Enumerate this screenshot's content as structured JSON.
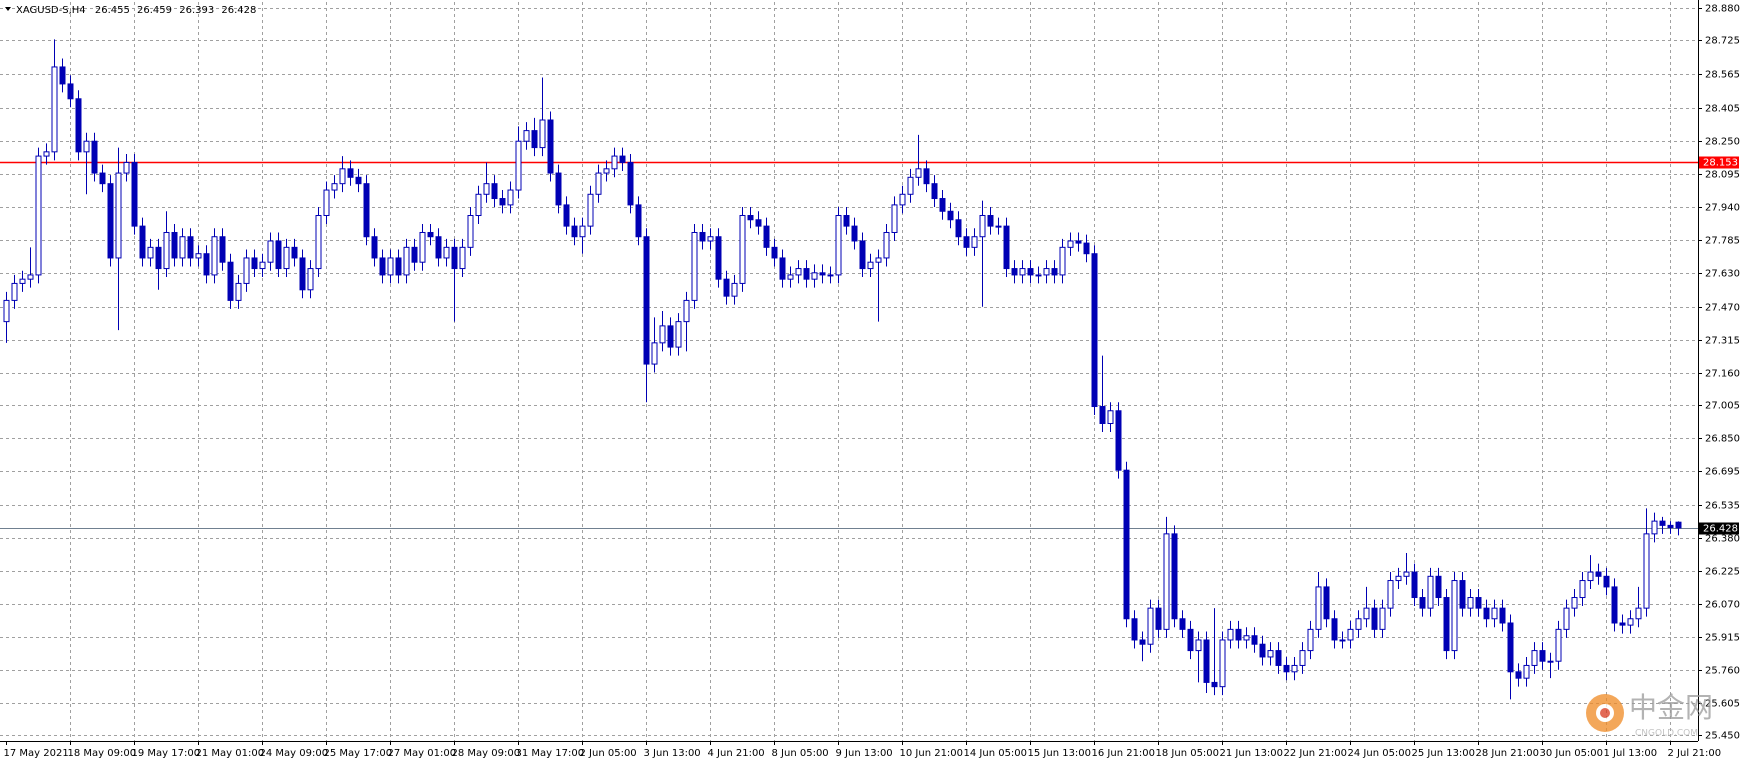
{
  "chart_data": {
    "type": "candlestick",
    "title": "XAGUSD-S,H4",
    "color": "#0000b4",
    "grid": true,
    "ylim": [
      25.424,
      28.906
    ],
    "yticks": [
      {
        "value": 28.88,
        "label": "28.880"
      },
      28.725,
      28.565,
      28.405,
      {
        "value": 28.25,
        "label": "28.250"
      },
      28.095,
      {
        "value": 27.94,
        "label": "27.940"
      },
      27.785,
      {
        "value": 27.63,
        "label": "27.630"
      },
      {
        "value": 27.47,
        "label": "27.470"
      },
      27.315,
      {
        "value": 27.16,
        "label": "27.160"
      },
      27.005,
      {
        "value": 26.85,
        "label": "26.850"
      },
      26.695,
      26.535,
      {
        "value": 26.38,
        "label": "26.380"
      },
      26.225,
      {
        "value": 26.07,
        "label": "26.070"
      },
      25.915,
      {
        "value": 25.76,
        "label": "25.760"
      },
      25.605,
      {
        "value": 25.45,
        "label": "25.450"
      }
    ],
    "level": {
      "value": 28.153,
      "color": "#ff0000"
    },
    "categories": [
      "17 May 2021",
      null,
      null,
      null,
      null,
      null,
      null,
      null,
      "18 May 09:00",
      null,
      null,
      null,
      null,
      null,
      null,
      null,
      "19 May 17:00",
      null,
      null,
      null,
      null,
      null,
      null,
      null,
      "21 May 01:00",
      null,
      null,
      null,
      null,
      null,
      null,
      null,
      "24 May 09:00",
      null,
      null,
      null,
      null,
      null,
      null,
      null,
      "25 May 17:00",
      null,
      null,
      null,
      null,
      null,
      null,
      null,
      "27 May 01:00",
      null,
      null,
      null,
      null,
      null,
      null,
      null,
      "28 May 09:00",
      null,
      null,
      null,
      null,
      null,
      null,
      null,
      "31 May 17:00",
      null,
      null,
      null,
      null,
      null,
      null,
      null,
      "2 Jun 05:00",
      null,
      null,
      null,
      null,
      null,
      null,
      null,
      "3 Jun 13:00",
      null,
      null,
      null,
      null,
      null,
      null,
      null,
      "4 Jun 21:00",
      null,
      null,
      null,
      null,
      null,
      null,
      null,
      "8 Jun 05:00",
      null,
      null,
      null,
      null,
      null,
      null,
      null,
      "9 Jun 13:00",
      null,
      null,
      null,
      null,
      null,
      null,
      null,
      "10 Jun 21:00",
      null,
      null,
      null,
      null,
      null,
      null,
      null,
      "14 Jun 05:00",
      null,
      null,
      null,
      null,
      null,
      null,
      null,
      "15 Jun 13:00",
      null,
      null,
      null,
      null,
      null,
      null,
      null,
      "16 Jun 21:00",
      null,
      null,
      null,
      null,
      null,
      null,
      null,
      "18 Jun 05:00",
      null,
      null,
      null,
      null,
      null,
      null,
      null,
      "21 Jun 13:00",
      null,
      null,
      null,
      null,
      null,
      null,
      null,
      "22 Jun 21:00",
      null,
      null,
      null,
      null,
      null,
      null,
      null,
      "24 Jun 05:00",
      null,
      null,
      null,
      null,
      null,
      null,
      null,
      "25 Jun 13:00",
      null,
      null,
      null,
      null,
      null,
      null,
      null,
      "28 Jun 21:00",
      null,
      null,
      null,
      null,
      null,
      null,
      null,
      "30 Jun 05:00",
      null,
      null,
      null,
      null,
      null,
      null,
      null,
      "1 Jul 13:00",
      null,
      null,
      null,
      null,
      null,
      null,
      null,
      "2 Jul 21:00",
      null
    ],
    "ohlc": [
      [
        27.4,
        27.54,
        27.3,
        27.5
      ],
      [
        27.5,
        27.62,
        27.46,
        27.58
      ],
      [
        27.58,
        27.64,
        27.54,
        27.6
      ],
      [
        27.6,
        27.75,
        27.56,
        27.62
      ],
      [
        27.62,
        28.22,
        27.58,
        28.18
      ],
      [
        28.18,
        28.24,
        28.14,
        28.2
      ],
      [
        28.2,
        28.73,
        28.16,
        28.6
      ],
      [
        28.6,
        28.64,
        28.48,
        28.52
      ],
      [
        28.52,
        28.56,
        28.41,
        28.45
      ],
      [
        28.45,
        28.49,
        28.16,
        28.2
      ],
      [
        28.2,
        28.29,
        28.0,
        28.25
      ],
      [
        28.25,
        28.29,
        28.06,
        28.1
      ],
      [
        28.1,
        28.14,
        28.01,
        28.05
      ],
      [
        28.05,
        28.09,
        27.66,
        27.7
      ],
      [
        27.7,
        28.22,
        27.36,
        28.1
      ],
      [
        28.1,
        28.19,
        28.06,
        28.15
      ],
      [
        28.15,
        28.19,
        27.81,
        27.85
      ],
      [
        27.85,
        27.89,
        27.66,
        27.7
      ],
      [
        27.7,
        27.79,
        27.66,
        27.75
      ],
      [
        27.75,
        27.79,
        27.55,
        27.65
      ],
      [
        27.65,
        27.92,
        27.61,
        27.82
      ],
      [
        27.82,
        27.86,
        27.66,
        27.7
      ],
      [
        27.7,
        27.84,
        27.66,
        27.8
      ],
      [
        27.8,
        27.84,
        27.66,
        27.7
      ],
      [
        27.7,
        27.76,
        27.66,
        27.72
      ],
      [
        27.72,
        27.76,
        27.58,
        27.62
      ],
      [
        27.62,
        27.84,
        27.58,
        27.8
      ],
      [
        27.8,
        27.84,
        27.64,
        27.68
      ],
      [
        27.68,
        27.72,
        27.46,
        27.5
      ],
      [
        27.5,
        27.62,
        27.46,
        27.58
      ],
      [
        27.58,
        27.74,
        27.54,
        27.7
      ],
      [
        27.7,
        27.74,
        27.61,
        27.65
      ],
      [
        27.65,
        27.72,
        27.61,
        27.68
      ],
      [
        27.68,
        27.82,
        27.64,
        27.78
      ],
      [
        27.78,
        27.82,
        27.61,
        27.65
      ],
      [
        27.65,
        27.79,
        27.61,
        27.75
      ],
      [
        27.75,
        27.79,
        27.66,
        27.7
      ],
      [
        27.7,
        27.74,
        27.51,
        27.55
      ],
      [
        27.55,
        27.69,
        27.51,
        27.65
      ],
      [
        27.65,
        27.94,
        27.61,
        27.9
      ],
      [
        27.9,
        28.06,
        27.86,
        28.02
      ],
      [
        28.02,
        28.09,
        27.98,
        28.05
      ],
      [
        28.05,
        28.18,
        28.01,
        28.12
      ],
      [
        28.12,
        28.16,
        28.04,
        28.08
      ],
      [
        28.08,
        28.12,
        28.01,
        28.05
      ],
      [
        28.05,
        28.09,
        27.76,
        27.8
      ],
      [
        27.8,
        27.84,
        27.66,
        27.7
      ],
      [
        27.7,
        27.74,
        27.58,
        27.62
      ],
      [
        27.62,
        27.74,
        27.58,
        27.7
      ],
      [
        27.7,
        27.74,
        27.58,
        27.62
      ],
      [
        27.62,
        27.79,
        27.58,
        27.75
      ],
      [
        27.75,
        27.79,
        27.64,
        27.68
      ],
      [
        27.68,
        27.86,
        27.64,
        27.82
      ],
      [
        27.82,
        27.86,
        27.76,
        27.8
      ],
      [
        27.8,
        27.84,
        27.66,
        27.7
      ],
      [
        27.7,
        27.79,
        27.66,
        27.75
      ],
      [
        27.75,
        27.79,
        27.4,
        27.65
      ],
      [
        27.65,
        27.79,
        27.61,
        27.75
      ],
      [
        27.75,
        27.94,
        27.71,
        27.9
      ],
      [
        27.9,
        28.04,
        27.86,
        28.0
      ],
      [
        28.0,
        28.15,
        27.96,
        28.05
      ],
      [
        28.05,
        28.09,
        27.94,
        27.98
      ],
      [
        27.98,
        28.02,
        27.91,
        27.95
      ],
      [
        27.95,
        28.06,
        27.91,
        28.02
      ],
      [
        28.02,
        28.32,
        27.98,
        28.25
      ],
      [
        28.25,
        28.34,
        28.21,
        28.3
      ],
      [
        28.3,
        28.36,
        28.18,
        28.22
      ],
      [
        28.22,
        28.55,
        28.18,
        28.35
      ],
      [
        28.35,
        28.39,
        28.06,
        28.1
      ],
      [
        28.1,
        28.14,
        27.91,
        27.95
      ],
      [
        27.95,
        27.99,
        27.81,
        27.85
      ],
      [
        27.85,
        27.89,
        27.76,
        27.8
      ],
      [
        27.8,
        27.89,
        27.72,
        27.85
      ],
      [
        27.85,
        28.04,
        27.81,
        28.0
      ],
      [
        28.0,
        28.14,
        27.96,
        28.1
      ],
      [
        28.1,
        28.16,
        28.06,
        28.12
      ],
      [
        28.12,
        28.22,
        28.08,
        28.18
      ],
      [
        28.18,
        28.22,
        28.11,
        28.15
      ],
      [
        28.15,
        28.19,
        27.91,
        27.95
      ],
      [
        27.95,
        27.99,
        27.76,
        27.8
      ],
      [
        27.8,
        27.84,
        27.02,
        27.2
      ],
      [
        27.2,
        27.42,
        27.16,
        27.3
      ],
      [
        27.3,
        27.45,
        27.26,
        27.38
      ],
      [
        27.38,
        27.42,
        27.24,
        27.28
      ],
      [
        27.28,
        27.44,
        27.24,
        27.4
      ],
      [
        27.4,
        27.54,
        27.26,
        27.5
      ],
      [
        27.5,
        27.86,
        27.46,
        27.82
      ],
      [
        27.82,
        27.86,
        27.74,
        27.78
      ],
      [
        27.78,
        27.84,
        27.74,
        27.8
      ],
      [
        27.8,
        27.84,
        27.56,
        27.6
      ],
      [
        27.6,
        27.64,
        27.48,
        27.52
      ],
      [
        27.52,
        27.62,
        27.48,
        27.58
      ],
      [
        27.58,
        27.94,
        27.54,
        27.9
      ],
      [
        27.9,
        27.94,
        27.84,
        27.88
      ],
      [
        27.88,
        27.92,
        27.81,
        27.85
      ],
      [
        27.85,
        27.89,
        27.71,
        27.75
      ],
      [
        27.75,
        27.79,
        27.66,
        27.7
      ],
      [
        27.7,
        27.74,
        27.56,
        27.6
      ],
      [
        27.6,
        27.66,
        27.56,
        27.62
      ],
      [
        27.62,
        27.69,
        27.58,
        27.65
      ],
      [
        27.65,
        27.69,
        27.56,
        27.6
      ],
      [
        27.6,
        27.67,
        27.56,
        27.63
      ],
      [
        27.63,
        27.67,
        27.58,
        27.62
      ],
      [
        27.62,
        27.66,
        27.58,
        27.62
      ],
      [
        27.62,
        27.94,
        27.58,
        27.9
      ],
      [
        27.9,
        27.94,
        27.81,
        27.85
      ],
      [
        27.85,
        27.89,
        27.74,
        27.78
      ],
      [
        27.78,
        27.82,
        27.61,
        27.65
      ],
      [
        27.65,
        27.72,
        27.61,
        27.68
      ],
      [
        27.68,
        27.74,
        27.4,
        27.7
      ],
      [
        27.7,
        27.86,
        27.66,
        27.82
      ],
      [
        27.82,
        27.99,
        27.78,
        27.95
      ],
      [
        27.95,
        28.04,
        27.91,
        28.0
      ],
      [
        28.0,
        28.12,
        27.96,
        28.08
      ],
      [
        28.08,
        28.28,
        28.04,
        28.12
      ],
      [
        28.12,
        28.16,
        28.01,
        28.05
      ],
      [
        28.05,
        28.09,
        27.94,
        27.98
      ],
      [
        27.98,
        28.02,
        27.88,
        27.92
      ],
      [
        27.92,
        27.96,
        27.84,
        27.88
      ],
      [
        27.88,
        27.92,
        27.76,
        27.8
      ],
      [
        27.8,
        27.84,
        27.71,
        27.75
      ],
      [
        27.75,
        27.84,
        27.71,
        27.8
      ],
      [
        27.8,
        27.97,
        27.47,
        27.9
      ],
      [
        27.9,
        27.94,
        27.81,
        27.85
      ],
      [
        27.85,
        27.89,
        27.81,
        27.85
      ],
      [
        27.85,
        27.89,
        27.61,
        27.65
      ],
      [
        27.65,
        27.69,
        27.58,
        27.62
      ],
      [
        27.62,
        27.69,
        27.58,
        27.65
      ],
      [
        27.65,
        27.69,
        27.58,
        27.62
      ],
      [
        27.62,
        27.66,
        27.58,
        27.62
      ],
      [
        27.62,
        27.69,
        27.58,
        27.65
      ],
      [
        27.65,
        27.69,
        27.58,
        27.62
      ],
      [
        27.62,
        27.79,
        27.58,
        27.75
      ],
      [
        27.75,
        27.82,
        27.71,
        27.78
      ],
      [
        27.78,
        27.82,
        27.73,
        27.77
      ],
      [
        27.77,
        27.81,
        27.68,
        27.72
      ],
      [
        27.72,
        27.76,
        26.96,
        27.0
      ],
      [
        27.0,
        27.24,
        26.88,
        26.92
      ],
      [
        26.92,
        27.02,
        26.88,
        26.98
      ],
      [
        26.98,
        27.02,
        26.66,
        26.7
      ],
      [
        26.7,
        26.74,
        25.96,
        26.0
      ],
      [
        26.0,
        26.04,
        25.86,
        25.9
      ],
      [
        25.9,
        25.94,
        25.8,
        25.88
      ],
      [
        25.88,
        26.09,
        25.84,
        26.05
      ],
      [
        26.05,
        26.09,
        25.91,
        25.95
      ],
      [
        25.95,
        26.48,
        25.91,
        26.4
      ],
      [
        26.4,
        26.44,
        25.96,
        26.0
      ],
      [
        26.0,
        26.04,
        25.91,
        25.95
      ],
      [
        25.95,
        25.99,
        25.81,
        25.85
      ],
      [
        25.85,
        25.94,
        25.7,
        25.9
      ],
      [
        25.9,
        25.94,
        25.65,
        25.7
      ],
      [
        25.7,
        26.05,
        25.64,
        25.68
      ],
      [
        25.68,
        25.94,
        25.64,
        25.9
      ],
      [
        25.9,
        25.99,
        25.86,
        25.95
      ],
      [
        25.95,
        25.99,
        25.86,
        25.9
      ],
      [
        25.9,
        25.96,
        25.86,
        25.92
      ],
      [
        25.92,
        25.96,
        25.84,
        25.88
      ],
      [
        25.88,
        25.92,
        25.78,
        25.82
      ],
      [
        25.82,
        25.89,
        25.78,
        25.85
      ],
      [
        25.85,
        25.89,
        25.74,
        25.78
      ],
      [
        25.78,
        25.82,
        25.71,
        25.75
      ],
      [
        25.75,
        25.82,
        25.71,
        25.78
      ],
      [
        25.78,
        25.89,
        25.74,
        25.85
      ],
      [
        25.85,
        25.99,
        25.81,
        25.95
      ],
      [
        25.95,
        26.22,
        25.91,
        26.15
      ],
      [
        26.15,
        26.19,
        25.96,
        26.0
      ],
      [
        26.0,
        26.04,
        25.86,
        25.9
      ],
      [
        25.9,
        25.94,
        25.86,
        25.9
      ],
      [
        25.9,
        25.99,
        25.86,
        25.95
      ],
      [
        25.95,
        26.04,
        25.91,
        26.0
      ],
      [
        26.0,
        26.15,
        25.96,
        26.05
      ],
      [
        26.05,
        26.09,
        25.91,
        25.95
      ],
      [
        25.95,
        26.09,
        25.91,
        26.05
      ],
      [
        26.05,
        26.22,
        26.01,
        26.18
      ],
      [
        26.18,
        26.24,
        26.14,
        26.2
      ],
      [
        26.2,
        26.31,
        26.16,
        26.22
      ],
      [
        26.22,
        26.26,
        26.06,
        26.1
      ],
      [
        26.1,
        26.14,
        26.01,
        26.05
      ],
      [
        26.05,
        26.24,
        26.01,
        26.2
      ],
      [
        26.2,
        26.24,
        26.06,
        26.1
      ],
      [
        26.1,
        26.14,
        25.81,
        25.85
      ],
      [
        25.85,
        26.22,
        25.81,
        26.18
      ],
      [
        26.18,
        26.22,
        26.01,
        26.05
      ],
      [
        26.05,
        26.14,
        26.01,
        26.1
      ],
      [
        26.1,
        26.14,
        26.01,
        26.05
      ],
      [
        26.05,
        26.09,
        25.96,
        26.0
      ],
      [
        26.0,
        26.09,
        25.96,
        26.05
      ],
      [
        26.05,
        26.09,
        25.94,
        25.98
      ],
      [
        25.98,
        26.02,
        25.62,
        25.75
      ],
      [
        25.75,
        25.79,
        25.68,
        25.72
      ],
      [
        25.72,
        25.82,
        25.68,
        25.78
      ],
      [
        25.78,
        25.89,
        25.74,
        25.85
      ],
      [
        25.85,
        25.89,
        25.76,
        25.8
      ],
      [
        25.8,
        25.84,
        25.72,
        25.8
      ],
      [
        25.8,
        25.99,
        25.76,
        25.95
      ],
      [
        25.95,
        26.09,
        25.91,
        26.05
      ],
      [
        26.05,
        26.14,
        26.01,
        26.1
      ],
      [
        26.1,
        26.22,
        26.06,
        26.18
      ],
      [
        26.18,
        26.3,
        26.14,
        26.22
      ],
      [
        26.22,
        26.26,
        26.16,
        26.2
      ],
      [
        26.2,
        26.24,
        26.11,
        26.15
      ],
      [
        26.15,
        26.19,
        25.94,
        25.98
      ],
      [
        25.98,
        26.02,
        25.93,
        25.97
      ],
      [
        25.97,
        26.04,
        25.93,
        26.0
      ],
      [
        26.0,
        26.15,
        25.96,
        26.05
      ],
      [
        26.05,
        26.52,
        26.01,
        26.4
      ],
      [
        26.4,
        26.5,
        26.36,
        26.46
      ],
      [
        26.46,
        26.48,
        26.4,
        26.44
      ],
      [
        26.44,
        26.46,
        26.4,
        26.43
      ],
      [
        26.455,
        26.459,
        26.393,
        26.428
      ]
    ]
  },
  "watermark": {
    "text": "中金网",
    "subtext": "CNGOLD.COM"
  }
}
